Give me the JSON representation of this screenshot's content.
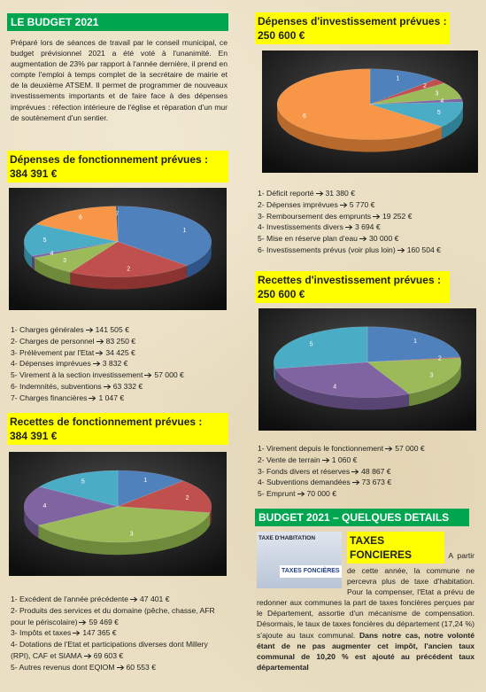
{
  "header": {
    "title": "LE BUDGET 2021"
  },
  "intro": "Préparé lors de séances de travail par le conseil municipal, ce budget prévisionnel 2021 a été voté à l'unanimité. En augmentation de 23% par rapport à l'année dernière, il prend en compte l'emploi à temps complet de la secrétaire de mairie et de la deuxième ATSEM. Il permet de programmer de nouveaux investissements importants et de faire face à des dépenses imprévues : réfection intérieure de l'église et réparation d'un mur de soutènement d'un sentier.",
  "dep_fonct": {
    "title": "Dépenses de fonctionnement prévues :",
    "amount": "384 391 €",
    "items": [
      {
        "slice": "1",
        "label": "1- Charges générales",
        "value": 141505,
        "value_label": "141 505 €"
      },
      {
        "slice": "2",
        "label": "2- Charges de personnel",
        "value": 83250,
        "value_label": "83 250 €"
      },
      {
        "slice": "3",
        "label": "3- Prélèvement par l'Etat",
        "value": 34425,
        "value_label": "34 425 €"
      },
      {
        "slice": "4",
        "label": "4- Dépenses imprévues",
        "value": 3832,
        "value_label": "3 832 €"
      },
      {
        "slice": "5",
        "label": "5- Virement à la section investissement",
        "value": 57000,
        "value_label": "57 000 €"
      },
      {
        "slice": "6",
        "label": "6- Indemnités, subventions",
        "value": 63332,
        "value_label": "63 332 €"
      },
      {
        "slice": "7",
        "label": "7- Charges financières",
        "value": 1047,
        "value_label": "1 047 €"
      }
    ]
  },
  "rec_fonct": {
    "title": "Recettes de fonctionnement prévues :",
    "amount": "384 391 €",
    "items": [
      {
        "slice": "1",
        "label": "1- Excédent de l'année précédente",
        "value": 47401,
        "value_label": "47 401 €"
      },
      {
        "slice": "2",
        "label": "2- Produits des services et du domaine (pêche, chasse, AFR pour le périscolaire)",
        "value": 59469,
        "value_label": "59 469 €"
      },
      {
        "slice": "3",
        "label": "3- Impôts et taxes",
        "value": 147365,
        "value_label": "147 365 €"
      },
      {
        "slice": "4",
        "label": "4- Dotations de l'Etat et participations diverses dont Millery (RPI), CAF et SIAMA",
        "value": 69603,
        "value_label": "69 603 €"
      },
      {
        "slice": "5",
        "label": "5- Autres revenus dont EQIOM",
        "value": 60553,
        "value_label": "60 553 €"
      }
    ]
  },
  "dep_invest": {
    "title": "Dépenses d'investissement prévues :",
    "amount": "250 600 €",
    "items": [
      {
        "slice": "1",
        "label": "1- Déficit reporté",
        "value": 31380,
        "value_label": "31 380 €"
      },
      {
        "slice": "2",
        "label": "2- Dépenses imprévues",
        "value": 5770,
        "value_label": "5 770 €"
      },
      {
        "slice": "3",
        "label": "3- Remboursement des emprunts",
        "value": 19252,
        "value_label": "19 252 €"
      },
      {
        "slice": "4",
        "label": "4- Investissements divers",
        "value": 3694,
        "value_label": "3 694 €"
      },
      {
        "slice": "5",
        "label": "5- Mise en réserve plan d'eau",
        "value": 30000,
        "value_label": "30 000 €"
      },
      {
        "slice": "6",
        "label": "6- Investissements prévus (voir plus loin)",
        "value": 160504,
        "value_label": "160 504 €"
      }
    ]
  },
  "rec_invest": {
    "title": "Recettes d'investissement prévues :",
    "amount": "250 600 €",
    "items": [
      {
        "slice": "1",
        "label": "1- Virement depuis le fonctionnement",
        "value": 57000,
        "value_label": "57 000 €"
      },
      {
        "slice": "2",
        "label": "2- Vente de terrain",
        "value": 1060,
        "value_label": "1 060 €"
      },
      {
        "slice": "3",
        "label": "3- Fonds divers et réserves",
        "value": 48867,
        "value_label": "48 867 €"
      },
      {
        "slice": "4",
        "label": "4- Subventions demandées",
        "value": 73673,
        "value_label": "73 673 €"
      },
      {
        "slice": "5",
        "label": "5- Emprunt",
        "value": 70000,
        "value_label": "70 000 €"
      }
    ]
  },
  "details": {
    "title": "BUDGET 2021 – QUELQUES DETAILS",
    "subtitle": "TAXES FONCIERES",
    "image": {
      "top": "TAXE D'HABITATION",
      "bottom": "TAXES FONCIÈRES"
    },
    "text": "A partir de cette année, la commune ne percevra plus de taxe d'habitation. Pour la compenser, l'Etat a prévu de redonner aux communes la part de taxes foncières perçues par le Département, assortie d'un mécanisme de compensation. Désormais, le taux de taxes foncières du département (17,24 %) s'ajoute au taux communal. ",
    "bold": "Dans notre cas, notre volonté étant de ne pas augmenter cet impôt, l'ancien taux communal de 10,20 % est ajouté au précédent taux départemental"
  }
}
